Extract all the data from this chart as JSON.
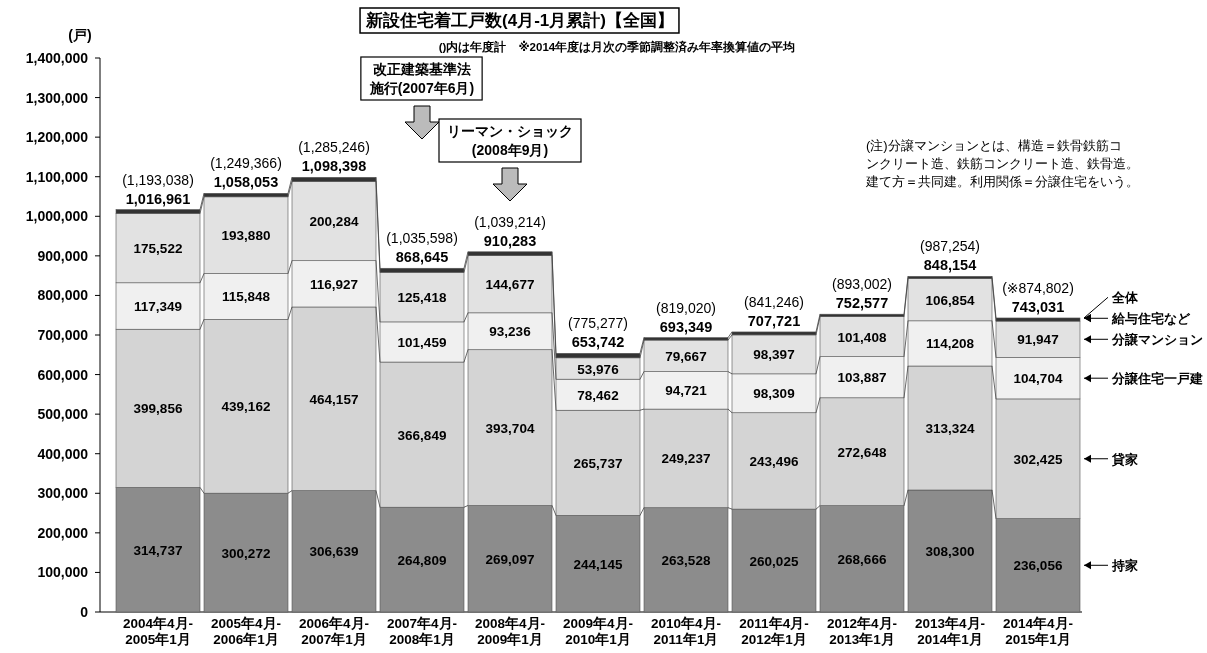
{
  "chart_data": {
    "type": "bar",
    "stacked": true,
    "title": "新設住宅着工戸数(4月-1月累計)【全国】",
    "subtitle": "()内は年度計　※2014年度は月次の季節調整済み年率換算値の平均",
    "ylabel": "(戸)",
    "categories": [
      "2004年4月-2005年1月",
      "2005年4月-2006年1月",
      "2006年4月-2007年1月",
      "2007年4月-2008年1月",
      "2008年4月-2009年1月",
      "2009年4月-2010年1月",
      "2010年4月-2011年1月",
      "2011年4月-2012年1月",
      "2012年4月-2013年1月",
      "2013年4月-2014年1月",
      "2014年4月-2015年1月"
    ],
    "series": [
      {
        "name": "持家",
        "color": "#8c8c8c",
        "values": [
          314737,
          300272,
          306639,
          264809,
          269097,
          244145,
          263528,
          260025,
          268666,
          308300,
          236056
        ],
        "value_labels": [
          "314,737",
          "300,272",
          "306,639",
          "264,809",
          "269,097",
          "244,145",
          "263,528",
          "260,025",
          "268,666",
          "308,300",
          "236,056"
        ]
      },
      {
        "name": "貸家",
        "color": "#d4d4d4",
        "values": [
          399856,
          439162,
          464157,
          366849,
          393704,
          265737,
          249237,
          243496,
          272648,
          313324,
          302425
        ],
        "value_labels": [
          "399,856",
          "439,162",
          "464,157",
          "366,849",
          "393,704",
          "265,737",
          "249,237",
          "243,496",
          "272,648",
          "313,324",
          "302,425"
        ]
      },
      {
        "name": "分譲住宅一戸建",
        "color": "#f0f0f0",
        "values": [
          117349,
          115848,
          116927,
          101459,
          93236,
          78462,
          94721,
          98309,
          103887,
          114208,
          104704
        ],
        "value_labels": [
          "117,349",
          "115,848",
          "116,927",
          "101,459",
          "93,236",
          "78,462",
          "94,721",
          "98,309",
          "103,887",
          "114,208",
          "104,704"
        ]
      },
      {
        "name": "分譲マンション",
        "color": "#e2e2e2",
        "values": [
          175522,
          193880,
          200284,
          125418,
          144677,
          53976,
          79667,
          98397,
          101408,
          106854,
          91947
        ],
        "value_labels": [
          "175,522",
          "193,880",
          "200,284",
          "125,418",
          "144,677",
          "53,976",
          "79,667",
          "98,397",
          "101,408",
          "106,854",
          "91,947"
        ]
      },
      {
        "name": "給与住宅など",
        "color": "#333333",
        "values": [
          9497,
          8891,
          10391,
          10110,
          9569,
          11422,
          6196,
          7494,
          5968,
          5468,
          7899
        ]
      }
    ],
    "totals": [
      "1,016,961",
      "1,058,053",
      "1,098,398",
      "868,645",
      "910,283",
      "653,742",
      "693,349",
      "707,721",
      "752,577",
      "848,154",
      "743,031"
    ],
    "ylim": [
      0,
      1400000
    ],
    "yticks": [
      0,
      {
        "value": 100000,
        "label": "100,000"
      },
      {
        "value": 200000,
        "label": "200,000"
      },
      {
        "value": 300000,
        "label": "300,000"
      },
      {
        "value": 400000,
        "label": "400,000"
      },
      {
        "value": 500000,
        "label": "500,000"
      },
      {
        "value": 600000,
        "label": "600,000"
      },
      {
        "value": 700000,
        "label": "700,000"
      },
      {
        "value": 800000,
        "label": "800,000"
      },
      {
        "value": 900000,
        "label": "900,000"
      },
      {
        "value": 1000000,
        "label": "1,000,000"
      },
      {
        "value": 1100000,
        "label": "1,100,000"
      },
      {
        "value": 1200000,
        "label": "1,200,000"
      },
      {
        "value": 1300000,
        "label": "1,300,000"
      },
      {
        "value": 1400000,
        "label": "1,400,000"
      }
    ],
    "grid": false,
    "annotations": [
      "改正建築基準法",
      "施行(2007年6月)",
      "リーマン・ショック",
      "(2008年9月)",
      "(注)分譲マンションとは、構造＝鉄骨鉄筋コンクリート造、鉄筋コンクリート造、鉄骨造。建て方＝共同建。利用関係＝分譲住宅をいう。",
      "全体",
      {
        "text": "(1,193,038)",
        "x": "2004年4月-2005年1月",
        "y": 1016961
      },
      {
        "text": "(1,249,366)",
        "x": "2005年4月-2006年1月",
        "y": 1058053
      },
      {
        "text": "(1,285,246)",
        "x": "2006年4月-2007年1月",
        "y": 1098398
      },
      {
        "text": "(1,035,598)",
        "x": "2007年4月-2008年1月",
        "y": 868645
      },
      {
        "text": "(1,039,214)",
        "x": "2008年4月-2009年1月",
        "y": 910283
      },
      {
        "text": "(775,277)",
        "x": "2009年4月-2010年1月",
        "y": 653742
      },
      {
        "text": "(819,020)",
        "x": "2010年4月-2011年1月",
        "y": 693349
      },
      {
        "text": "(841,246)",
        "x": "2011年4月-2012年1月",
        "y": 707721
      },
      {
        "text": "(893,002)",
        "x": "2012年4月-2013年1月",
        "y": 752577
      },
      {
        "text": "(987,254)",
        "x": "2013年4月-2014年1月",
        "y": 848154
      },
      {
        "text": "(※874,802)",
        "x": "2014年4月-2015年1月",
        "y": 743031
      }
    ]
  }
}
